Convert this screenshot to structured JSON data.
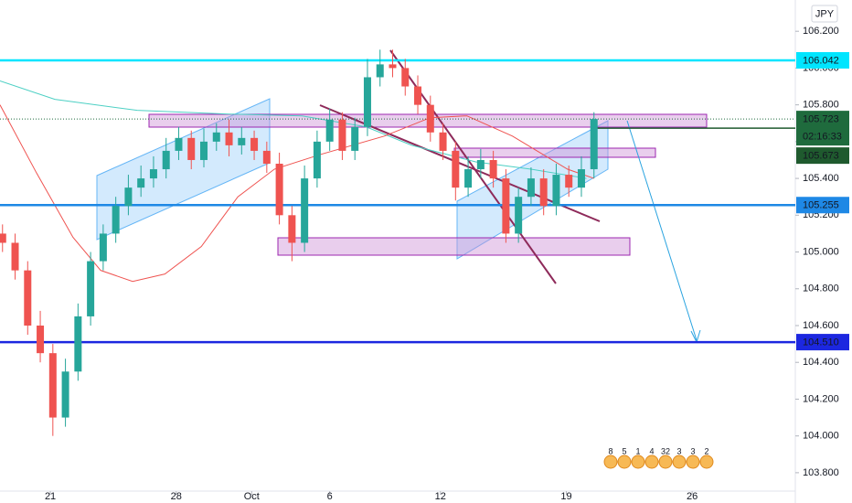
{
  "chart_data": {
    "type": "candlestick",
    "symbol_label": "JPY",
    "up_color": "#26a69a",
    "down_color": "#ef5350",
    "xlim": [
      -2,
      29.6
    ],
    "xticks": [
      {
        "value": 0,
        "label": "21"
      },
      {
        "value": 5,
        "label": "28"
      },
      {
        "value": 8,
        "label": "Oct"
      },
      {
        "value": 11.1,
        "label": "6"
      },
      {
        "value": 15.5,
        "label": "12"
      },
      {
        "value": 20.5,
        "label": "19"
      },
      {
        "value": 25.5,
        "label": "26"
      }
    ],
    "ylim": [
      103.7,
      106.37
    ],
    "yticks": [
      {
        "value": 103.8,
        "label": "103.800"
      },
      {
        "value": 104.0,
        "label": "104.000"
      },
      {
        "value": 104.2,
        "label": "104.200"
      },
      {
        "value": 104.4,
        "label": "104.400"
      },
      {
        "value": 104.6,
        "label": "104.600"
      },
      {
        "value": 104.8,
        "label": "104.800"
      },
      {
        "value": 105.0,
        "label": "105.000"
      },
      {
        "value": 105.2,
        "label": "105.200"
      },
      {
        "value": 105.4,
        "label": "105.400"
      },
      {
        "value": 105.6,
        "label": "105.600"
      },
      {
        "value": 105.8,
        "label": "105.800"
      },
      {
        "value": 106.0,
        "label": "106.000"
      },
      {
        "value": 106.2,
        "label": "106.200"
      }
    ],
    "x": [
      -1.9,
      -1.4,
      -0.9,
      -0.4,
      0.1,
      0.6,
      1.1,
      1.6,
      2.1,
      2.6,
      3.1,
      3.6,
      4.1,
      4.6,
      5.1,
      5.6,
      6.1,
      6.6,
      7.1,
      7.6,
      8.1,
      8.6,
      9.1,
      9.6,
      10.1,
      10.6,
      11.1,
      11.6,
      12.1,
      12.6,
      13.1,
      13.6,
      14.1,
      14.6,
      15.1,
      15.6,
      16.1,
      16.6,
      17.1,
      17.6,
      18.1,
      18.6,
      19.1,
      19.6,
      20.1,
      20.6,
      21.1,
      21.6
    ],
    "open": [
      105.1,
      105.05,
      104.9,
      104.6,
      104.45,
      104.1,
      104.35,
      104.65,
      104.95,
      105.1,
      105.25,
      105.35,
      105.4,
      105.45,
      105.55,
      105.62,
      105.5,
      105.6,
      105.65,
      105.58,
      105.62,
      105.55,
      105.48,
      105.2,
      105.05,
      105.4,
      105.6,
      105.72,
      105.55,
      105.68,
      105.95,
      106.02,
      106.0,
      105.9,
      105.8,
      105.65,
      105.55,
      105.35,
      105.45,
      105.5,
      105.4,
      105.1,
      105.3,
      105.4,
      105.25,
      105.42,
      105.35,
      105.45
    ],
    "high": [
      105.15,
      105.1,
      104.95,
      104.68,
      104.5,
      104.42,
      104.72,
      105.0,
      105.15,
      105.3,
      105.42,
      105.47,
      105.52,
      105.62,
      105.68,
      105.66,
      105.67,
      105.7,
      105.72,
      105.68,
      105.66,
      105.6,
      105.54,
      105.25,
      105.47,
      105.66,
      105.78,
      105.76,
      105.73,
      106.05,
      106.1,
      106.1,
      106.05,
      105.96,
      105.85,
      105.7,
      105.6,
      105.52,
      105.56,
      105.55,
      105.45,
      105.35,
      105.46,
      105.45,
      105.48,
      105.47,
      105.52,
      105.76
    ],
    "low": [
      105.0,
      104.85,
      104.55,
      104.4,
      104.0,
      104.05,
      104.3,
      104.6,
      104.9,
      105.05,
      105.2,
      105.3,
      105.35,
      105.4,
      105.5,
      105.45,
      105.46,
      105.55,
      105.52,
      105.53,
      105.5,
      105.43,
      105.15,
      104.95,
      105.0,
      105.35,
      105.55,
      105.5,
      105.5,
      105.63,
      105.9,
      105.95,
      105.85,
      105.75,
      105.6,
      105.5,
      105.28,
      105.3,
      105.4,
      105.35,
      105.05,
      105.05,
      105.25,
      105.2,
      105.2,
      105.3,
      105.3,
      105.4
    ],
    "close": [
      105.05,
      104.9,
      104.6,
      104.45,
      104.1,
      104.35,
      104.65,
      104.95,
      105.1,
      105.25,
      105.35,
      105.4,
      105.45,
      105.55,
      105.62,
      105.5,
      105.6,
      105.65,
      105.58,
      105.62,
      105.55,
      105.48,
      105.2,
      105.05,
      105.4,
      105.6,
      105.72,
      105.55,
      105.68,
      105.95,
      106.02,
      106.0,
      105.9,
      105.8,
      105.65,
      105.55,
      105.35,
      105.45,
      105.5,
      105.4,
      105.1,
      105.3,
      105.4,
      105.25,
      105.42,
      105.35,
      105.45,
      105.723
    ],
    "moving_averages": [
      {
        "color": "#4dd0c4",
        "x": [
          -2,
          0.18,
          3.45,
          7.09,
          10,
          12.55,
          14.36,
          16.9,
          19.1,
          21.3
        ],
        "values": [
          105.93,
          105.83,
          105.77,
          105.75,
          105.74,
          105.68,
          105.58,
          105.49,
          105.45,
          105.4
        ]
      },
      {
        "color": "#ef5350",
        "x": [
          -2,
          -0.55,
          0.9,
          2,
          3.27,
          4.55,
          6,
          7.45,
          8.9,
          10.73,
          13.27,
          15.09,
          16.55,
          18.36,
          20.55,
          21.6
        ],
        "values": [
          105.8,
          105.43,
          105.08,
          104.9,
          104.84,
          104.88,
          105.03,
          105.3,
          105.45,
          105.53,
          105.63,
          105.73,
          105.74,
          105.63,
          105.45,
          105.4
        ]
      }
    ],
    "levels": [
      {
        "value": 106.042,
        "color": "#00e5ff",
        "text_color": "#131722"
      },
      {
        "value": 105.255,
        "color": "#1e88e5",
        "text_color": "#ffffff"
      },
      {
        "value": 104.51,
        "label": "104.510",
        "color": "#1c27e0",
        "text_color": "#ffffff"
      }
    ],
    "last_price": {
      "value": 105.723,
      "color": "#1f6b3d",
      "countdown": "02:16:33"
    },
    "reference_price": {
      "value": 105.673,
      "color": "#1f5a2e"
    },
    "event_badges": [
      "8",
      "5",
      "1",
      "4",
      "32",
      "3",
      "3",
      "2"
    ]
  }
}
